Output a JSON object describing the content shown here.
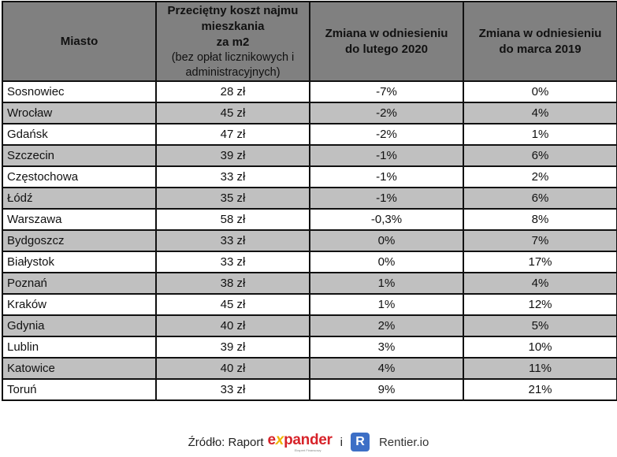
{
  "table": {
    "headers": {
      "city": "Miasto",
      "cost_main_line1": "Przeciętny koszt najmu",
      "cost_main_line2": "mieszkania",
      "cost_main_line3": "za m2",
      "cost_sub_line1": "(bez opłat licznikowych i",
      "cost_sub_line2": "administracyjnych)",
      "change_feb_line1": "Zmiana  w odniesieniu",
      "change_feb_line2": "do lutego 2020",
      "change_mar_line1": "Zmiana  w odniesieniu",
      "change_mar_line2": "do marca 2019"
    },
    "rows": [
      {
        "city": "Sosnowiec",
        "cost": "28 zł",
        "change_feb_2020": "-7%",
        "change_mar_2019": "0%"
      },
      {
        "city": "Wrocław",
        "cost": "45 zł",
        "change_feb_2020": "-2%",
        "change_mar_2019": "4%"
      },
      {
        "city": "Gdańsk",
        "cost": "47 zł",
        "change_feb_2020": "-2%",
        "change_mar_2019": "1%"
      },
      {
        "city": "Szczecin",
        "cost": "39 zł",
        "change_feb_2020": "-1%",
        "change_mar_2019": "6%"
      },
      {
        "city": "Częstochowa",
        "cost": "33 zł",
        "change_feb_2020": "-1%",
        "change_mar_2019": "2%"
      },
      {
        "city": "Łódź",
        "cost": "35 zł",
        "change_feb_2020": "-1%",
        "change_mar_2019": "6%"
      },
      {
        "city": "Warszawa",
        "cost": "58 zł",
        "change_feb_2020": "-0,3%",
        "change_mar_2019": "8%"
      },
      {
        "city": "Bydgoszcz",
        "cost": "33 zł",
        "change_feb_2020": "0%",
        "change_mar_2019": "7%"
      },
      {
        "city": "Białystok",
        "cost": "33 zł",
        "change_feb_2020": "0%",
        "change_mar_2019": "17%"
      },
      {
        "city": "Poznań",
        "cost": "38 zł",
        "change_feb_2020": "1%",
        "change_mar_2019": "4%"
      },
      {
        "city": "Kraków",
        "cost": "45 zł",
        "change_feb_2020": "1%",
        "change_mar_2019": "12%"
      },
      {
        "city": "Gdynia",
        "cost": "40 zł",
        "change_feb_2020": "2%",
        "change_mar_2019": "5%"
      },
      {
        "city": "Lublin",
        "cost": "39 zł",
        "change_feb_2020": "3%",
        "change_mar_2019": "10%"
      },
      {
        "city": "Katowice",
        "cost": "40 zł",
        "change_feb_2020": "4%",
        "change_mar_2019": "11%"
      },
      {
        "city": "Toruń",
        "cost": "33 zł",
        "change_feb_2020": "9%",
        "change_mar_2019": "21%"
      }
    ]
  },
  "source": {
    "label": "Źródło: Raport",
    "expander_pre": "e",
    "expander_x": "x",
    "expander_post": "pander",
    "expander_tagline": "Ekspert Finansowy",
    "separator": "i",
    "rentier_badge": "R",
    "rentier_name": "Rentier.io"
  },
  "colors": {
    "header_bg": "#808080",
    "row_alt_bg": "#c0c0c0",
    "row_bg": "#ffffff",
    "border": "#111111",
    "expander_red": "#d7232a",
    "expander_yellow": "#f0b400",
    "rentier_blue": "#3d6fc6"
  }
}
